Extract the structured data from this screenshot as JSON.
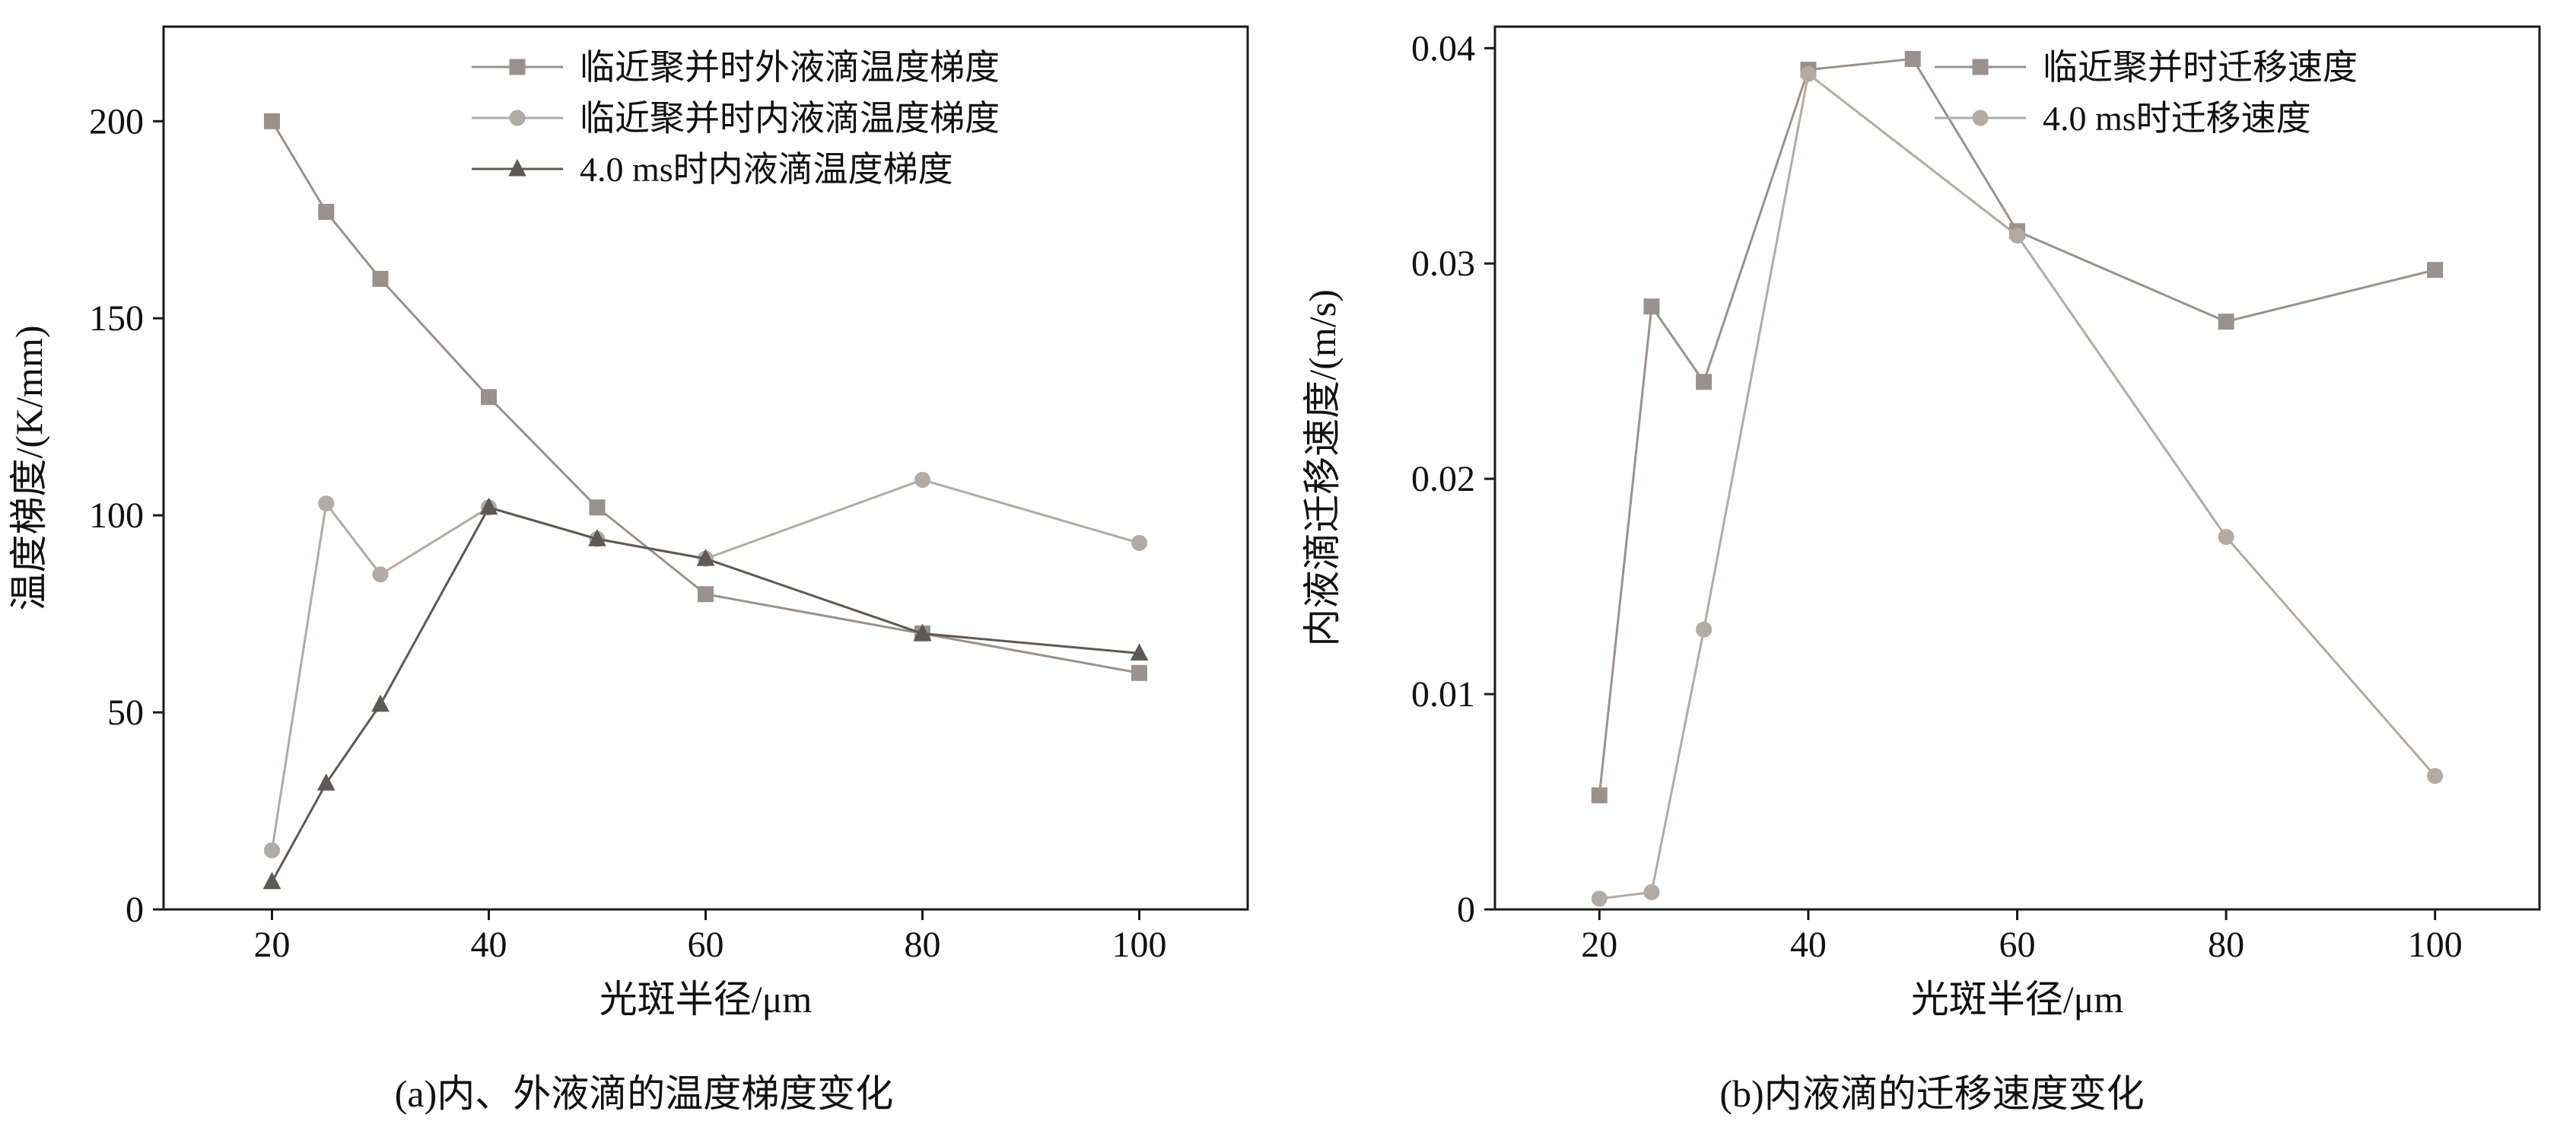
{
  "chart_data": [
    {
      "type": "line",
      "caption": "(a)内、外液滴的温度梯度变化",
      "xlabel": "光斑半径/μm",
      "ylabel": "温度梯度/(K/mm)",
      "xlim": [
        10,
        110
      ],
      "ylim": [
        0,
        224
      ],
      "xticks": [
        20,
        40,
        60,
        80,
        100
      ],
      "xtick_labels": [
        "20",
        "40",
        "60",
        "80",
        "100"
      ],
      "yticks": [
        0,
        50,
        100,
        150,
        200
      ],
      "ytick_labels": [
        "0",
        "50",
        "100",
        "150",
        "200"
      ],
      "grid": false,
      "legend_position": "top-center-inside",
      "series": [
        {
          "name": "临近聚并时外液滴温度梯度",
          "marker": "square",
          "color": "#9b918c",
          "x": [
            20,
            25,
            30,
            40,
            50,
            60,
            80,
            100
          ],
          "y": [
            200,
            177,
            160,
            130,
            102,
            80,
            70,
            60
          ]
        },
        {
          "name": "临近聚并时内液滴温度梯度",
          "marker": "circle",
          "color": "#b3aaa4",
          "x": [
            20,
            25,
            30,
            40,
            50,
            60,
            80,
            100
          ],
          "y": [
            15,
            103,
            85,
            102,
            94,
            89,
            109,
            93
          ]
        },
        {
          "name": "4.0 ms时内液滴温度梯度",
          "marker": "triangle",
          "color": "#5f5854",
          "x": [
            20,
            25,
            30,
            40,
            50,
            60,
            80,
            100
          ],
          "y": [
            7,
            32,
            52,
            102,
            94,
            89,
            70,
            65
          ]
        }
      ]
    },
    {
      "type": "line",
      "caption": "(b)内液滴的迁移速度变化",
      "xlabel": "光斑半径/μm",
      "ylabel": "内液滴迁移速度/(m/s)",
      "xlim": [
        10,
        110
      ],
      "ylim": [
        0,
        0.041
      ],
      "xticks": [
        20,
        40,
        60,
        80,
        100
      ],
      "xtick_labels": [
        "20",
        "40",
        "60",
        "80",
        "100"
      ],
      "yticks": [
        0,
        0.01,
        0.02,
        0.03,
        0.04
      ],
      "ytick_labels": [
        "0",
        "0.01",
        "0.02",
        "0.03",
        "0.04"
      ],
      "grid": false,
      "legend_position": "top-right-inside",
      "series": [
        {
          "name": "临近聚并时迁移速度",
          "marker": "square",
          "color": "#9b918c",
          "x": [
            20,
            25,
            30,
            40,
            50,
            60,
            80,
            100
          ],
          "y": [
            0.0053,
            0.028,
            0.0245,
            0.039,
            0.0395,
            0.0315,
            0.0273,
            0.0297
          ]
        },
        {
          "name": "4.0 ms时迁移速度",
          "marker": "circle",
          "color": "#b3aaa4",
          "x": [
            20,
            25,
            30,
            40,
            60,
            80,
            100
          ],
          "y": [
            0.0005,
            0.0008,
            0.013,
            0.0388,
            0.0313,
            0.0173,
            0.0062
          ]
        }
      ]
    }
  ],
  "colors": {
    "axis": "#1a1a1a",
    "text": "#111111"
  }
}
